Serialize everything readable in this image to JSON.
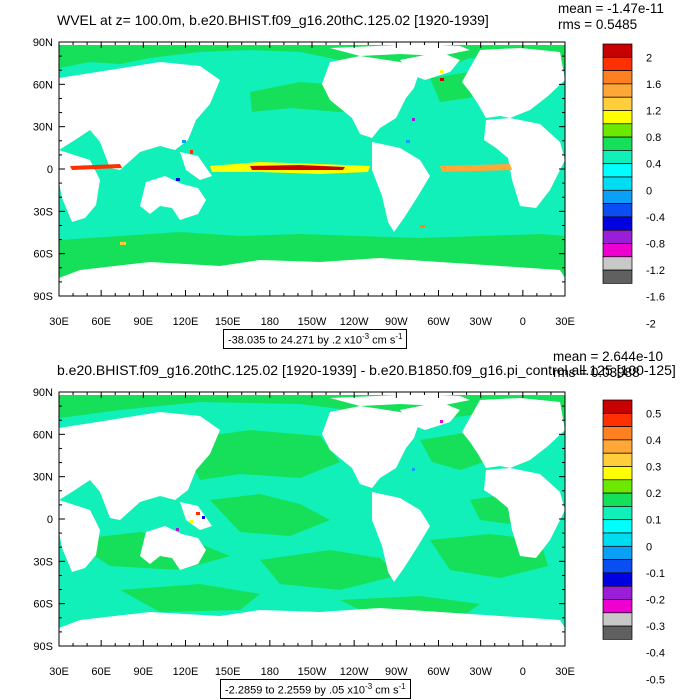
{
  "colors": [
    "#606060",
    "#c8c8c8",
    "#ee00d0",
    "#9a1ed8",
    "#0000e0",
    "#0a4ef2",
    "#0aa0f8",
    "#00dcf0",
    "#00ffff",
    "#10f0b8",
    "#16e05a",
    "#6de800",
    "#ffff00",
    "#ffce3a",
    "#ffa838",
    "#ff8020",
    "#ff3000",
    "#c80000"
  ],
  "chart_data": [
    {
      "type": "heatmap",
      "title": "WVEL at z= 100.0m, b.e20.BHIST.f09_g16.20thC.125.02 [1920-1939]",
      "mean_label": "mean = -1.47e-11",
      "rms_label": "rms = 0.5485",
      "contour_info": "-38.035 to 24.271 by .2 x10",
      "contour_exp": "-3",
      "contour_units": " cm s",
      "contour_units_exp": "-1",
      "x_ticks": [
        "30E",
        "60E",
        "90E",
        "120E",
        "150E",
        "180",
        "150W",
        "120W",
        "90W",
        "60W",
        "30W",
        "0",
        "30E"
      ],
      "y_ticks": [
        "90N",
        "60N",
        "30N",
        "0",
        "30S",
        "60S",
        "90S"
      ],
      "colorbar_labels": [
        "2",
        "1.6",
        "1.2",
        "0.8",
        "0.4",
        "0",
        "-0.4",
        "-0.8",
        "-1.2",
        "-1.6",
        "-2"
      ],
      "background_level": "0"
    },
    {
      "type": "heatmap",
      "title": "b.e20.BHIST.f09_g16.20thC.125.02 [1920-1939] - b.e20.B1850.f09_g16.pi_control.all.125 [100-125]",
      "mean_label": "mean = 2.644e-10",
      "rms_label": "rms = 0.03988",
      "contour_info": "-2.2859 to 2.2559 by .05 x10",
      "contour_exp": "-3",
      "contour_units": " cm s",
      "contour_units_exp": "-1",
      "x_ticks": [
        "30E",
        "60E",
        "90E",
        "120E",
        "150E",
        "180",
        "150W",
        "120W",
        "90W",
        "60W",
        "30W",
        "0",
        "30E"
      ],
      "y_ticks": [
        "90N",
        "60N",
        "30N",
        "0",
        "30S",
        "60S",
        "90S"
      ],
      "colorbar_labels": [
        "0.5",
        "0.4",
        "0.3",
        "0.2",
        "0.1",
        "0",
        "-0.1",
        "-0.2",
        "-0.3",
        "-0.4",
        "-0.5"
      ],
      "background_level": "0"
    }
  ]
}
